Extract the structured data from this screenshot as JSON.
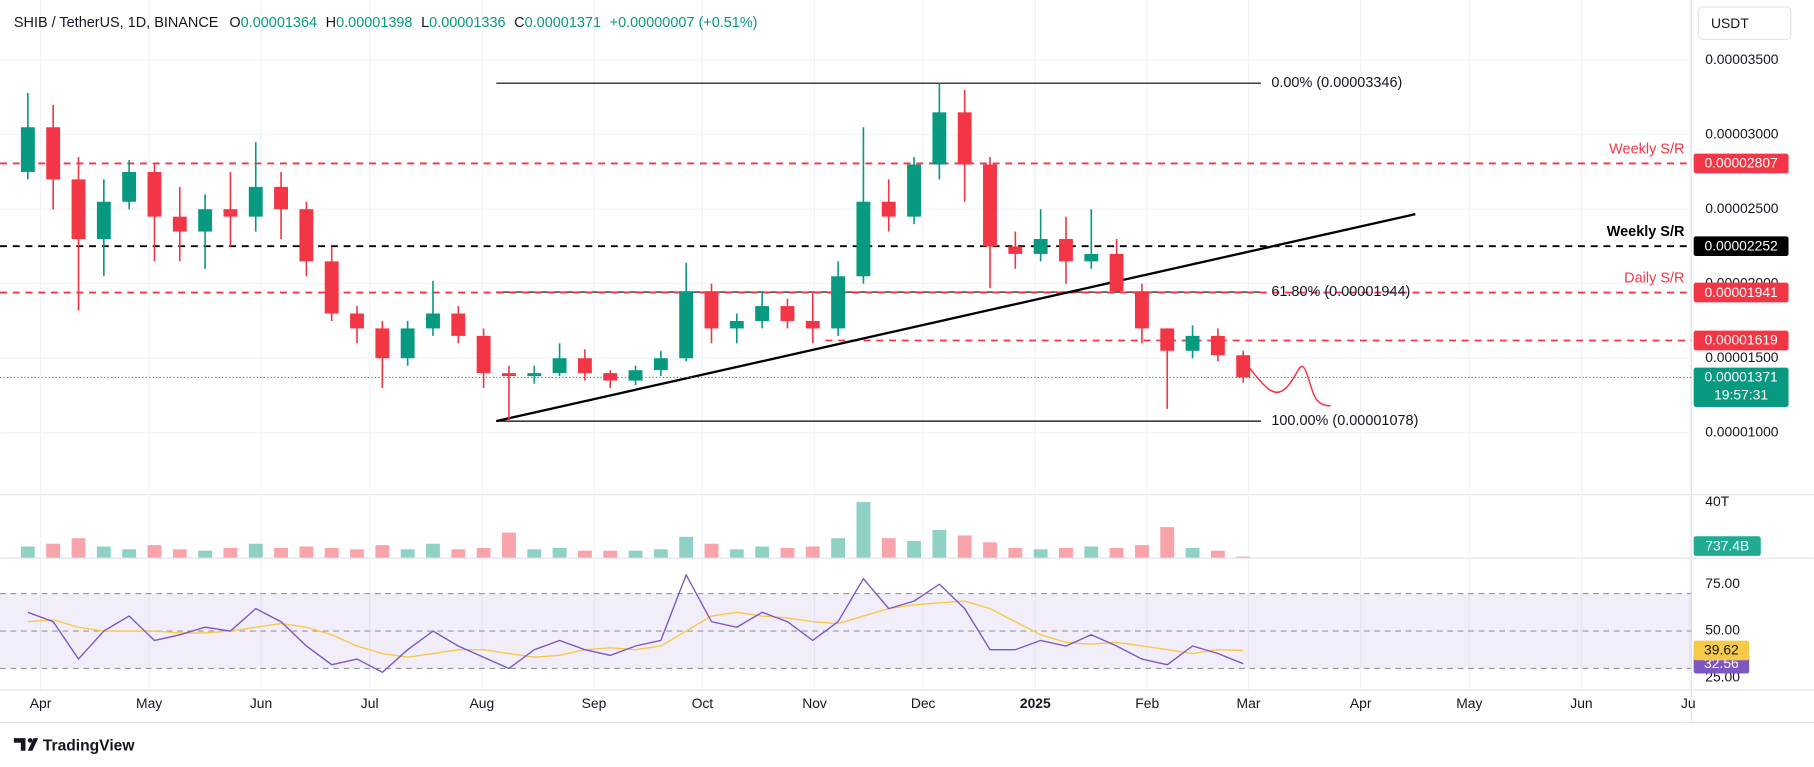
{
  "header": {
    "symbol": "SHIB / TetherUS, 1D, BINANCE",
    "ohlc": [
      {
        "label": "O",
        "value": "0.00001364"
      },
      {
        "label": "H",
        "value": "0.00001398"
      },
      {
        "label": "L",
        "value": "0.00001336"
      },
      {
        "label": "C",
        "value": "0.00001371"
      }
    ],
    "change": "+0.00000007 (+0.51%)",
    "currency": "USDT"
  },
  "chart_data": [
    {
      "type": "candlestick",
      "x": [
        0.5,
        1.5,
        2.5,
        3.5,
        4.5,
        5.5,
        6.5,
        7.5,
        8.5,
        9.5,
        10.5,
        11.5,
        12.5,
        13.5,
        14.5,
        15.5,
        16.5,
        17.5,
        18.5,
        19.5,
        20.5,
        21.5,
        22.5,
        23.5,
        24.5,
        25.5,
        26.5,
        27.5,
        28.5,
        29.5,
        30.5,
        31.5,
        32.5,
        33.5,
        34.5,
        35.5,
        36.5,
        37.5,
        38.5,
        39.5,
        40.5,
        41.5,
        42.5,
        43.5,
        44.5,
        45.5,
        46.5,
        47.5,
        48.5
      ],
      "open": [
        2.75e-05,
        3.05e-05,
        2.7e-05,
        2.3e-05,
        2.55e-05,
        2.75e-05,
        2.45e-05,
        2.35e-05,
        2.5e-05,
        2.45e-05,
        2.65e-05,
        2.5e-05,
        2.15e-05,
        1.8e-05,
        1.7e-05,
        1.5e-05,
        1.7e-05,
        1.8e-05,
        1.65e-05,
        1.4e-05,
        1.38e-05,
        1.4e-05,
        1.5e-05,
        1.4e-05,
        1.35e-05,
        1.42e-05,
        1.5e-05,
        1.95e-05,
        1.7e-05,
        1.75e-05,
        1.85e-05,
        1.75e-05,
        1.7e-05,
        2.05e-05,
        2.55e-05,
        2.45e-05,
        2.8e-05,
        3.15e-05,
        2.8e-05,
        2.25e-05,
        2.2e-05,
        2.3e-05,
        2.15e-05,
        2.2e-05,
        1.95e-05,
        1.7e-05,
        1.55e-05,
        1.65e-05,
        1.52e-05
      ],
      "high": [
        3.28e-05,
        3.2e-05,
        2.85e-05,
        2.7e-05,
        2.83e-05,
        2.8e-05,
        2.65e-05,
        2.6e-05,
        2.75e-05,
        2.95e-05,
        2.75e-05,
        2.55e-05,
        2.25e-05,
        1.85e-05,
        1.75e-05,
        1.75e-05,
        2.02e-05,
        1.85e-05,
        1.7e-05,
        1.45e-05,
        1.45e-05,
        1.6e-05,
        1.56e-05,
        1.42e-05,
        1.45e-05,
        1.55e-05,
        2.14e-05,
        2e-05,
        1.8e-05,
        1.95e-05,
        1.9e-05,
        1.95e-05,
        2.15e-05,
        3.05e-05,
        2.7e-05,
        2.85e-05,
        3.346e-05,
        3.3e-05,
        2.85e-05,
        2.35e-05,
        2.5e-05,
        2.45e-05,
        2.5e-05,
        2.3e-05,
        2e-05,
        1.7e-05,
        1.72e-05,
        1.7e-05,
        1.55e-05
      ],
      "low": [
        2.7e-05,
        2.5e-05,
        1.82e-05,
        2.05e-05,
        2.5e-05,
        2.15e-05,
        2.15e-05,
        2.1e-05,
        2.25e-05,
        2.35e-05,
        2.3e-05,
        2.05e-05,
        1.75e-05,
        1.6e-05,
        1.3e-05,
        1.45e-05,
        1.65e-05,
        1.6e-05,
        1.3e-05,
        1.078e-05,
        1.33e-05,
        1.38e-05,
        1.35e-05,
        1.3e-05,
        1.32e-05,
        1.38e-05,
        1.48e-05,
        1.6e-05,
        1.6e-05,
        1.7e-05,
        1.7e-05,
        1.6e-05,
        1.65e-05,
        2e-05,
        2.35e-05,
        2.4e-05,
        2.7e-05,
        2.55e-05,
        1.97e-05,
        2.1e-05,
        2.15e-05,
        2e-05,
        2.1e-05,
        1.95e-05,
        1.6e-05,
        1.16e-05,
        1.5e-05,
        1.48e-05,
        1.336e-05
      ],
      "close": [
        3.05e-05,
        2.7e-05,
        2.3e-05,
        2.55e-05,
        2.75e-05,
        2.45e-05,
        2.35e-05,
        2.5e-05,
        2.45e-05,
        2.65e-05,
        2.5e-05,
        2.15e-05,
        1.8e-05,
        1.7e-05,
        1.5e-05,
        1.7e-05,
        1.8e-05,
        1.65e-05,
        1.4e-05,
        1.38e-05,
        1.4e-05,
        1.5e-05,
        1.4e-05,
        1.35e-05,
        1.42e-05,
        1.5e-05,
        1.95e-05,
        1.7e-05,
        1.75e-05,
        1.85e-05,
        1.75e-05,
        1.7e-05,
        2.05e-05,
        2.55e-05,
        2.45e-05,
        2.8e-05,
        3.15e-05,
        2.8e-05,
        2.25e-05,
        2.2e-05,
        2.3e-05,
        2.15e-05,
        2.2e-05,
        1.95e-05,
        1.7e-05,
        1.55e-05,
        1.65e-05,
        1.52e-05,
        1.371e-05
      ],
      "up_color": "#089981",
      "down_color": "#f23645",
      "xlim": [
        -0.6,
        66.2
      ],
      "ylim": [
        5.89e-06,
        3.904e-05
      ],
      "grid": true,
      "yticks": [
        {
          "value": 1e-05,
          "label": "0.00001000"
        },
        {
          "value": 1.5e-05,
          "label": "0.00001500"
        },
        {
          "value": 2e-05,
          "label": "0.00002000"
        },
        {
          "value": 2.5e-05,
          "label": "0.00002500"
        },
        {
          "value": 3e-05,
          "label": "0.00003000"
        },
        {
          "value": 3.5e-05,
          "label": "0.00003500"
        }
      ],
      "xticks": [
        {
          "value": 1,
          "label": "Apr"
        },
        {
          "value": 5.29,
          "label": "May"
        },
        {
          "value": 9.71,
          "label": "Jun"
        },
        {
          "value": 14,
          "label": "Jul"
        },
        {
          "value": 18.43,
          "label": "Aug"
        },
        {
          "value": 22.86,
          "label": "Sep"
        },
        {
          "value": 27.14,
          "label": "Oct"
        },
        {
          "value": 31.57,
          "label": "Nov"
        },
        {
          "value": 35.86,
          "label": "Dec"
        },
        {
          "value": 40.29,
          "label": "2025"
        },
        {
          "value": 44.71,
          "label": "Feb"
        },
        {
          "value": 48.71,
          "label": "Mar"
        },
        {
          "value": 53.14,
          "label": "Apr"
        },
        {
          "value": 57.43,
          "label": "May"
        },
        {
          "value": 61.86,
          "label": "Jun"
        },
        {
          "value": 66.14,
          "label": "Jul"
        }
      ],
      "levels": [
        {
          "value": 2.807e-05,
          "label": "0.00002807",
          "name": "Weekly S/R",
          "color": "#f23645"
        },
        {
          "value": 2.252e-05,
          "label": "0.00002252",
          "name": "Weekly S/R",
          "color": "#000000"
        },
        {
          "value": 1.941e-05,
          "label": "0.00001941",
          "name": "Daily S/R",
          "color": "#f23645"
        },
        {
          "value": 1.619e-05,
          "label": "0.00001619",
          "color": "#f23645",
          "from": 32
        }
      ],
      "fibonacci": {
        "x": [
          19,
          49.2
        ],
        "color": "#000000",
        "levels": [
          {
            "value": 3.346e-05,
            "label": "0.00% (0.00003346)"
          },
          {
            "value": 1.944e-05,
            "label": "61.80% (0.00001944)"
          },
          {
            "value": 1.078e-05,
            "label": "100.00% (0.00001078)"
          }
        ]
      },
      "trendline": {
        "x": [
          19,
          55.3
        ],
        "y": [
          1.078e-05,
          2.467e-05
        ],
        "color": "#000000"
      },
      "last_price": {
        "value": 1.371e-05,
        "label": "0.00001371",
        "countdown": "19:57:31",
        "color": "#089981"
      }
    },
    {
      "type": "bar",
      "values": [
        8000000000000,
        10000000000000,
        14000000000000,
        8000000000000,
        6000000000000,
        9000000000000,
        6000000000000,
        5000000000000,
        7000000000000,
        10000000000000,
        7000000000000,
        8000000000000,
        7000000000000,
        6000000000000,
        9000000000000,
        6000000000000,
        10000000000000,
        6000000000000,
        7000000000000,
        18000000000000,
        6000000000000,
        7000000000000,
        5000000000000,
        5000000000000,
        5000000000000,
        6000000000000,
        15000000000000,
        10000000000000,
        6000000000000,
        8000000000000,
        7000000000000,
        8000000000000,
        14000000000000,
        40000000000000,
        14000000000000,
        12000000000000,
        20000000000000,
        16000000000000,
        11000000000000,
        7000000000000,
        6000000000000,
        7000000000000,
        8000000000000,
        7000000000000,
        9000000000000,
        22000000000000,
        7000000000000,
        5000000000000,
        737400000000
      ],
      "value_labels": [
        null,
        null,
        null,
        null,
        null,
        null,
        null,
        null,
        null,
        null,
        null,
        null,
        null,
        null,
        null,
        null,
        null,
        null,
        null,
        null,
        null,
        null,
        null,
        null,
        null,
        null,
        null,
        null,
        null,
        null,
        null,
        null,
        null,
        null,
        null,
        null,
        null,
        null,
        null,
        null,
        null,
        null,
        null,
        null,
        null,
        null,
        null,
        null,
        "737.4B"
      ],
      "up_color": "rgba(8,153,129,0.45)",
      "down_color": "rgba(242,54,69,0.45)",
      "label_color": "#22ab94",
      "ylim": [
        0,
        45000000000000
      ],
      "yticks": [
        {
          "value": 40000000000000,
          "label": "40T"
        }
      ]
    },
    {
      "type": "line",
      "series": [
        {
          "color": "#7e57c2",
          "values": [
            60,
            55,
            35,
            50,
            58,
            45,
            48,
            52,
            50,
            62,
            55,
            42,
            32,
            35,
            28,
            40,
            50,
            42,
            36,
            30,
            40,
            45,
            40,
            37,
            42,
            45,
            80,
            55,
            52,
            60,
            55,
            45,
            55,
            78,
            62,
            66,
            75,
            62,
            40,
            40,
            45,
            42,
            48,
            42,
            35,
            32,
            42,
            38,
            32.56
          ]
        },
        {
          "color": "#f7c948",
          "values": [
            55,
            56,
            52,
            50,
            50,
            50,
            49,
            49,
            50,
            52,
            54,
            52,
            48,
            42,
            38,
            36,
            38,
            40,
            40,
            38,
            36,
            37,
            40,
            41,
            40,
            42,
            50,
            58,
            60,
            58,
            57,
            55,
            54,
            58,
            62,
            64,
            65,
            66,
            62,
            55,
            48,
            44,
            43,
            44,
            42,
            40,
            38,
            40,
            39.62
          ]
        }
      ],
      "band": [
        30,
        70
      ],
      "reference_lines": [
        70,
        50,
        30
      ],
      "band_color": "rgba(126,87,194,0.1)",
      "ylim": [
        20,
        88
      ],
      "yticks": [
        {
          "value": 25,
          "label": "25.00"
        },
        {
          "value": 50,
          "label": "50.00"
        },
        {
          "value": 75,
          "label": "75.00"
        }
      ]
    }
  ],
  "footer": {
    "brand": "TradingView"
  }
}
